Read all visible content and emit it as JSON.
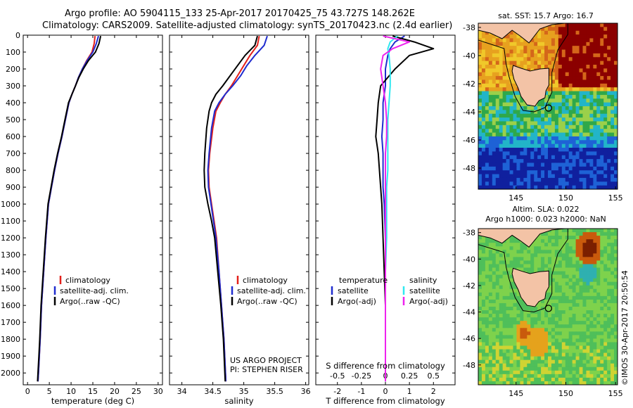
{
  "header": {
    "line1": "Argo profile: AO 5904115_133 25-Apr-2017 20170425_75 43.727S 148.262E",
    "line2": "Climatology: CARS2009. Satellite-adjusted climatology: synTS_20170423.nc (2.4d earlier)"
  },
  "colors": {
    "climatology": "#e3201b",
    "satellite": "#1f2ccf",
    "argo": "#000000",
    "salinity_satellite": "#2fe8f0",
    "salinity_argo": "#ee22ee"
  },
  "credit": "©IMOS 30-Apr-2017 20:50:54",
  "chart_data": [
    {
      "type": "line",
      "name_key": "temperature",
      "xlabel": "temperature (deg C)",
      "ylabel": "",
      "xlim": [
        -1,
        31
      ],
      "ylim": [
        0,
        2070
      ],
      "y_reversed": true,
      "xticks": [
        "0",
        "5",
        "10",
        "15",
        "20",
        "25",
        "30"
      ],
      "yticks": [
        "0",
        "100",
        "200",
        "300",
        "400",
        "500",
        "600",
        "700",
        "800",
        "900",
        "1000",
        "1100",
        "1200",
        "1300",
        "1400",
        "1500",
        "1600",
        "1700",
        "1800",
        "1900",
        "2000"
      ],
      "legend": [
        "climatology",
        "satellite-adj. clim.",
        "Argo(..raw -QC)"
      ],
      "legend_placement": "center",
      "series": [
        {
          "name": "climatology",
          "color_key": "climatology",
          "x": [
            15.5,
            15.3,
            14.8,
            13.6,
            12.6,
            11.7,
            11.0,
            10.2,
            9.5,
            8.7,
            7.9,
            7.0,
            6.2,
            5.5,
            4.8,
            4.2,
            3.7,
            3.2,
            2.9,
            2.7,
            2.5,
            2.4
          ],
          "y": [
            5,
            50,
            100,
            150,
            200,
            250,
            300,
            350,
            400,
            500,
            600,
            700,
            800,
            900,
            1000,
            1200,
            1400,
            1600,
            1800,
            1900,
            2000,
            2050
          ]
        },
        {
          "name": "satellite-adj. clim.",
          "color_key": "satellite",
          "x": [
            16.3,
            15.8,
            15.0,
            13.7,
            12.6,
            11.7,
            11.0,
            10.2,
            9.5,
            8.7,
            7.9,
            7.0,
            6.2,
            5.5,
            4.8,
            4.2,
            3.7,
            3.2,
            2.9,
            2.7,
            2.5,
            2.4
          ],
          "y": [
            5,
            50,
            100,
            150,
            200,
            250,
            300,
            350,
            400,
            500,
            600,
            700,
            800,
            900,
            1000,
            1200,
            1400,
            1600,
            1800,
            1900,
            2000,
            2050
          ]
        },
        {
          "name": "Argo(..raw -QC)",
          "color_key": "argo",
          "x": [
            16.8,
            16.4,
            15.6,
            14.0,
            12.8,
            11.8,
            11.0,
            10.2,
            9.4,
            8.6,
            7.8,
            6.9,
            6.1,
            5.4,
            4.7,
            4.1,
            3.6,
            3.1,
            2.8,
            2.6,
            2.4,
            2.3
          ],
          "y": [
            5,
            50,
            100,
            150,
            200,
            250,
            300,
            350,
            400,
            500,
            600,
            700,
            800,
            900,
            1000,
            1200,
            1400,
            1600,
            1800,
            1900,
            2000,
            2050
          ]
        }
      ]
    },
    {
      "type": "line",
      "name_key": "salinity",
      "xlabel": "salinity",
      "ylabel": "",
      "xlim": [
        33.8,
        36.05
      ],
      "ylim": [
        0,
        2070
      ],
      "y_reversed": true,
      "xticks": [
        "34",
        "34.5",
        "35",
        "35.5",
        "36"
      ],
      "legend": [
        "climatology",
        "satellite-adj. clim.",
        "Argo(..raw -QC)"
      ],
      "legend_placement": "center",
      "annotation": [
        "US ARGO PROJECT",
        "PI: STEPHEN RISER"
      ],
      "series": [
        {
          "name": "climatology",
          "color_key": "climatology",
          "x": [
            35.25,
            35.22,
            35.1,
            35.0,
            34.9,
            34.8,
            34.7,
            34.62,
            34.55,
            34.5,
            34.45,
            34.43,
            34.44,
            34.48,
            34.52,
            34.56,
            34.6,
            34.64,
            34.68,
            34.71
          ],
          "y": [
            5,
            60,
            120,
            180,
            240,
            300,
            350,
            400,
            450,
            550,
            700,
            800,
            900,
            1000,
            1100,
            1200,
            1400,
            1600,
            1800,
            2050
          ]
        },
        {
          "name": "satellite-adj. clim.",
          "color_key": "satellite",
          "x": [
            35.38,
            35.33,
            35.18,
            35.05,
            34.95,
            34.82,
            34.7,
            34.6,
            34.53,
            34.48,
            34.44,
            34.42,
            34.43,
            34.47,
            34.51,
            34.55,
            34.6,
            34.64,
            34.68,
            34.71
          ],
          "y": [
            5,
            60,
            120,
            180,
            240,
            300,
            350,
            400,
            450,
            550,
            700,
            800,
            900,
            1000,
            1100,
            1200,
            1400,
            1600,
            1800,
            2050
          ]
        },
        {
          "name": "Argo(..raw -QC)",
          "color_key": "argo",
          "x": [
            35.22,
            35.18,
            35.02,
            34.9,
            34.78,
            34.66,
            34.55,
            34.48,
            34.44,
            34.4,
            34.37,
            34.36,
            34.37,
            34.42,
            34.48,
            34.53,
            34.58,
            34.63,
            34.67,
            34.7
          ],
          "y": [
            5,
            60,
            120,
            180,
            240,
            300,
            350,
            400,
            450,
            550,
            700,
            800,
            900,
            1000,
            1100,
            1200,
            1400,
            1600,
            1800,
            2050
          ]
        }
      ]
    },
    {
      "type": "line",
      "name_key": "difference",
      "xlabel": "T difference from climatology",
      "xlabel_top": "S difference from climatology",
      "ylabel": "",
      "xlim": [
        -2.9,
        2.9
      ],
      "ylim": [
        0,
        2070
      ],
      "y_reversed": true,
      "xticks": [
        "-2",
        "-1",
        "0",
        "1",
        "2"
      ],
      "xticks_top": [
        "-0.5",
        "-0.25",
        "0",
        "0.25",
        "0.5"
      ],
      "legend": [
        "temperature",
        "satellite",
        "Argo(-adj)",
        "salinity",
        "satellite",
        "Argo(-adj)"
      ],
      "legend_placement": "center",
      "series": [
        {
          "name": "satellite",
          "group": "temperature",
          "color_key": "satellite",
          "x": [
            0.8,
            0.4,
            0.2,
            0.1,
            0.0,
            0.0,
            -0.1,
            -0.1,
            -0.15,
            -0.1,
            -0.1,
            -0.1,
            -0.05,
            0.0,
            0.0,
            0.0,
            0.0,
            0.0
          ],
          "y": [
            5,
            40,
            80,
            120,
            200,
            300,
            400,
            500,
            600,
            700,
            800,
            900,
            1000,
            1200,
            1400,
            1600,
            1800,
            2050
          ]
        },
        {
          "name": "Argo(-adj)",
          "group": "temperature",
          "color_key": "argo",
          "x": [
            0.3,
            1.2,
            2.0,
            1.0,
            0.4,
            -0.2,
            -0.3,
            -0.35,
            -0.4,
            -0.3,
            -0.25,
            -0.2,
            -0.15,
            -0.1,
            -0.05,
            0.0,
            0.0,
            0.0
          ],
          "y": [
            5,
            40,
            80,
            120,
            200,
            300,
            400,
            500,
            600,
            700,
            800,
            900,
            1000,
            1200,
            1400,
            1600,
            1800,
            2050
          ]
        },
        {
          "name": "satellite",
          "group": "salinity",
          "color_key": "salinity_satellite",
          "x": [
            0.5,
            0.2,
            0.1,
            0.15,
            0.2,
            0.2,
            0.15,
            0.1,
            0.1,
            0.1,
            0.1,
            0.05,
            0.05,
            0.05,
            0.0,
            0.0,
            0.0,
            0.0
          ],
          "y": [
            5,
            40,
            80,
            120,
            200,
            300,
            400,
            500,
            600,
            700,
            800,
            900,
            1000,
            1200,
            1400,
            1600,
            1800,
            2050
          ]
        },
        {
          "name": "Argo(-adj)",
          "group": "salinity",
          "color_key": "salinity_argo",
          "x": [
            -0.1,
            1.0,
            0.3,
            -0.1,
            -0.2,
            -0.1,
            0.0,
            0.05,
            0.05,
            0.0,
            0.0,
            0.0,
            0.0,
            0.0,
            0.0,
            0.0,
            0.0,
            0.0
          ],
          "y": [
            5,
            40,
            80,
            120,
            200,
            300,
            400,
            500,
            600,
            700,
            800,
            900,
            1000,
            1200,
            1400,
            1600,
            1800,
            2050
          ]
        }
      ]
    },
    {
      "type": "heatmap",
      "name_key": "sst_map",
      "title": "sat. SST: 15.7 Argo: 16.7",
      "xlim": [
        141.2,
        155.2
      ],
      "ylim": [
        -49.5,
        -37.7
      ],
      "xticks": [
        "145",
        "150",
        "155"
      ],
      "yticks": [
        "-38",
        "-40",
        "-42",
        "-44",
        "-46",
        "-48"
      ],
      "profile_location": [
        148.262,
        -43.727
      ],
      "colors": [
        "#8b0000",
        "#d4661a",
        "#e7a11f",
        "#f0c82a",
        "#9bd04a",
        "#2fa84a",
        "#22b5c8",
        "#1e62d6",
        "#10209e"
      ]
    },
    {
      "type": "heatmap",
      "name_key": "sla_map",
      "title": "Altim. SLA: 0.022",
      "subtitle": "Argo h1000: 0.023 h2000: NaN",
      "xlim": [
        141.2,
        155.2
      ],
      "ylim": [
        -49.5,
        -37.7
      ],
      "xticks": [
        "145",
        "150",
        "155"
      ],
      "yticks": [
        "-38",
        "-40",
        "-42",
        "-44",
        "-46",
        "-48"
      ],
      "profile_location": [
        148.262,
        -43.727
      ],
      "colors": [
        "#7a1f00",
        "#c95a0c",
        "#e5a21c",
        "#cfd433",
        "#7ed24c",
        "#4fbf5a",
        "#2fb0b0"
      ]
    }
  ]
}
